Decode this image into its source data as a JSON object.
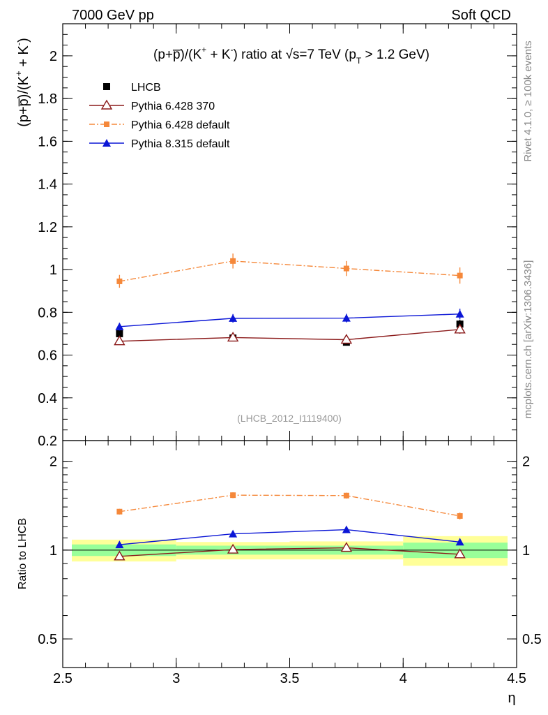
{
  "header": {
    "left_label": "7000 GeV pp",
    "right_label": "Soft QCD",
    "side_rivet": "Rivet 4.1.0, ≥ 100k events",
    "side_mcplots": "mcplots.cern.ch [arXiv:1306.3436]",
    "analysis_id": "(LHCB_2012_I1119400)"
  },
  "colors": {
    "lhcb": "#000000",
    "p6_370": "#8b1a1a",
    "p6_default": "#f5883a",
    "p8_default": "#0b16d6",
    "band_inner": "#99ff99",
    "band_outer": "#ffff99"
  },
  "chart_data": [
    {
      "type": "scatter",
      "panel": "main",
      "title": "(p+p̅)/(K⁺ + K⁻) ratio at √s=7 TeV (p_T > 1.2 GeV)",
      "title_parts": {
        "a": "(p+p̅)/(K",
        "b": "+",
        "c": " + K",
        "d": "-",
        "e": ") ratio at √s=7 TeV (p",
        "f": "T",
        "g": " > 1.2 GeV)"
      },
      "ylabel": "(p+p̅)/(K⁺ + K⁻)",
      "ylabel_parts": {
        "a": "(p+p̅)/(K",
        "b": "+",
        "c": " + K",
        "d": "-",
        "e": ")"
      },
      "xlim": [
        2.5,
        4.5
      ],
      "ylim": [
        0.2,
        2.15
      ],
      "yticks": [
        0.2,
        0.4,
        0.6,
        0.8,
        1.0,
        1.2,
        1.4,
        1.6,
        1.8,
        2.0
      ],
      "ytick_labels": [
        "0.2",
        "0.4",
        "0.6",
        "0.8",
        "1",
        "1.2",
        "1.4",
        "1.6",
        "1.8",
        "2"
      ],
      "x": [
        2.75,
        3.25,
        3.75,
        4.25
      ],
      "series": [
        {
          "name": "LHCB",
          "key": "lhcb",
          "marker": "square",
          "line": "none",
          "values": [
            0.7,
            0.68,
            0.66,
            0.745
          ],
          "errors": [
            0.015,
            0.015,
            0.015,
            0.02
          ]
        },
        {
          "name": "Pythia 6.428 370",
          "key": "p6_370",
          "marker": "open-triangle",
          "line": "solid",
          "values": [
            0.665,
            0.682,
            0.672,
            0.72
          ],
          "errors": [
            0.012,
            0.015,
            0.015,
            0.02
          ]
        },
        {
          "name": "Pythia 6.428 default",
          "key": "p6_default",
          "marker": "small-square",
          "line": "dashdot",
          "values": [
            0.945,
            1.04,
            1.005,
            0.972
          ],
          "errors": [
            0.03,
            0.035,
            0.035,
            0.038
          ]
        },
        {
          "name": "Pythia 8.315 default",
          "key": "p8_default",
          "marker": "triangle",
          "line": "solid",
          "values": [
            0.733,
            0.772,
            0.773,
            0.792
          ],
          "errors": [
            0.018,
            0.02,
            0.02,
            0.025
          ]
        }
      ]
    },
    {
      "type": "scatter",
      "panel": "ratio",
      "ylabel": "Ratio to LHCB",
      "xlabel": "η",
      "xlim": [
        2.5,
        4.5
      ],
      "ylim": [
        0.4,
        2.35
      ],
      "log_y": true,
      "yticks": [
        0.5,
        1,
        2
      ],
      "ytick_labels": [
        "0.5",
        "1",
        "2"
      ],
      "xticks": [
        2.5,
        3.0,
        3.5,
        4.0,
        4.5
      ],
      "xtick_labels": [
        "2.5",
        "3",
        "3.5",
        "4",
        "4.5"
      ],
      "x": [
        2.75,
        3.25,
        3.75,
        4.25
      ],
      "bands": [
        {
          "x0": 2.5,
          "x1": 3.0,
          "inner": [
            0.955,
            1.045
          ],
          "outer": [
            0.915,
            1.085
          ]
        },
        {
          "x0": 3.0,
          "x1": 3.5,
          "inner": [
            0.965,
            1.035
          ],
          "outer": [
            0.93,
            1.065
          ]
        },
        {
          "x0": 3.5,
          "x1": 4.0,
          "inner": [
            0.965,
            1.035
          ],
          "outer": [
            0.93,
            1.07
          ]
        },
        {
          "x0": 4.0,
          "x1": 4.5,
          "inner": [
            0.94,
            1.06
          ],
          "outer": [
            0.885,
            1.115
          ]
        }
      ],
      "series": [
        {
          "name": "Pythia 6.428 370",
          "key": "p6_370",
          "marker": "open-triangle",
          "line": "solid",
          "values": [
            0.952,
            1.004,
            1.018,
            0.968
          ],
          "errors": [
            0.008,
            0.008,
            0.008,
            0.01
          ]
        },
        {
          "name": "Pythia 6.428 default",
          "key": "p6_default",
          "marker": "small-square",
          "line": "dashdot",
          "values": [
            1.35,
            1.535,
            1.53,
            1.305
          ],
          "errors": [
            0.03,
            0.035,
            0.035,
            0.035
          ]
        },
        {
          "name": "Pythia 8.315 default",
          "key": "p8_default",
          "marker": "triangle",
          "line": "solid",
          "values": [
            1.043,
            1.135,
            1.173,
            1.065
          ],
          "errors": [
            0.015,
            0.018,
            0.018,
            0.02
          ]
        }
      ]
    }
  ]
}
